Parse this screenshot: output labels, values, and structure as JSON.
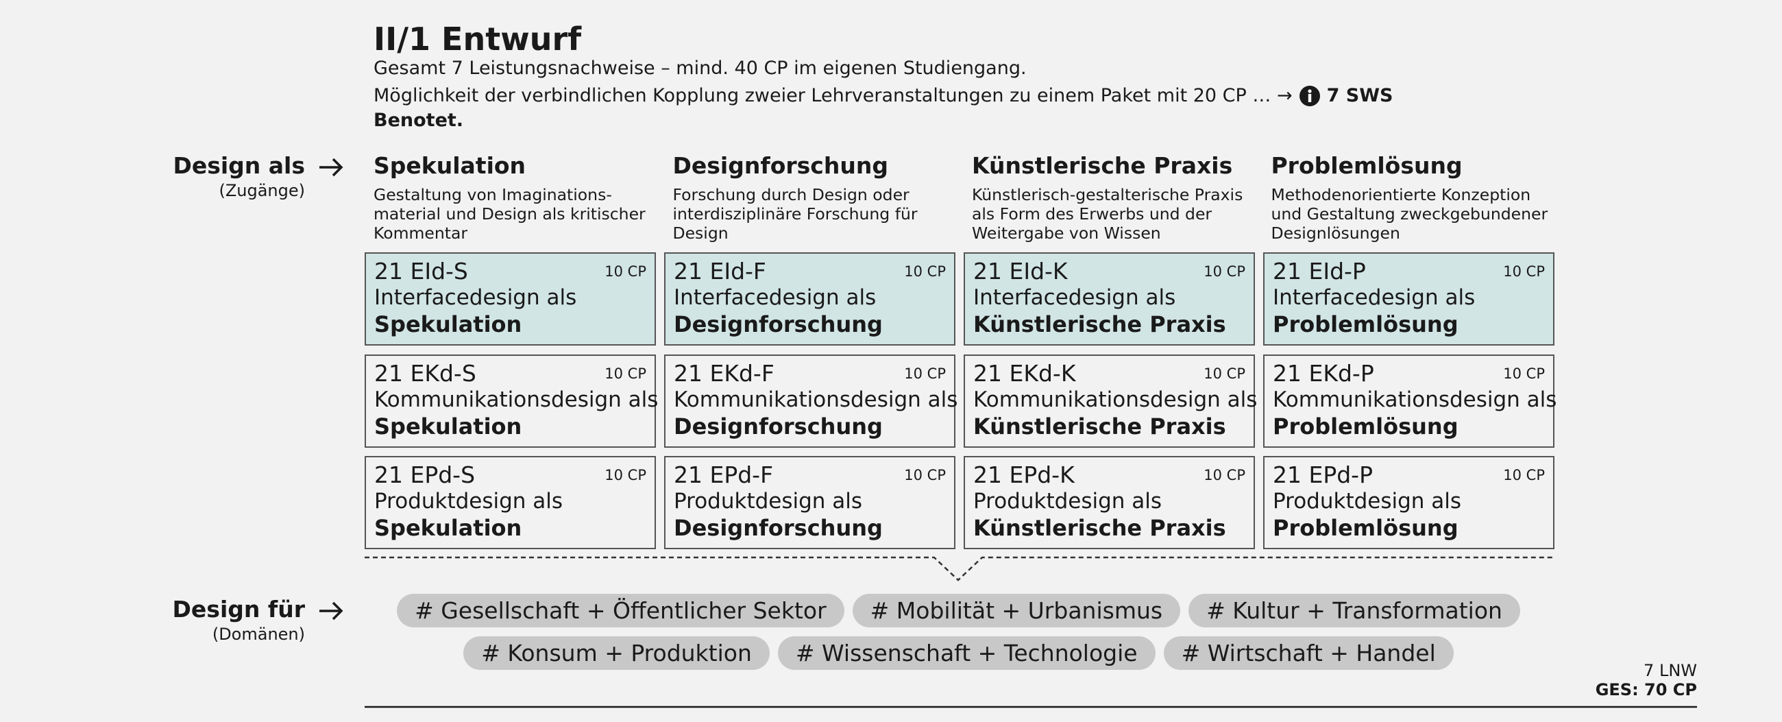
{
  "header": {
    "title": "II/1 Entwurf",
    "line1": "Gesamt 7 Leistungsnachweise – mind. 40 CP im eigenen Studiengang.",
    "line2": "Möglichkeit der verbindlichen Kopplung zweier Lehrveranstaltungen zu einem Paket mit 20 CP … →",
    "sws": "7 SWS",
    "graded": "Benotet."
  },
  "approaches": {
    "label": "Design als",
    "sublabel": "(Zugänge)"
  },
  "domains_label": {
    "label": "Design für",
    "sublabel": "(Domänen)"
  },
  "columns": [
    {
      "title": "Spekulation",
      "desc": "Gestaltung von Imaginations-\nmaterial und Design als kritischer\nKommentar"
    },
    {
      "title": "Designforschung",
      "desc": "Forschung durch Design oder\ninterdisziplinäre Forschung für\nDesign"
    },
    {
      "title": "Künstlerische Praxis",
      "desc": "Künstlerisch-gestalterische Praxis\nals Form des Erwerbs und der\nWeitergabe von Wissen"
    },
    {
      "title": "Problemlösung",
      "desc": "Methodenorientierte Konzeption\nund Gestaltung zweckgebundener\nDesignlösungen"
    }
  ],
  "modules": [
    [
      {
        "code": "21 EId-S",
        "cp": "10 CP",
        "name": "Interfacedesign als",
        "focus": "Spekulation"
      },
      {
        "code": "21 EId-F",
        "cp": "10 CP",
        "name": "Interfacedesign als",
        "focus": "Designforschung"
      },
      {
        "code": "21 EId-K",
        "cp": "10 CP",
        "name": "Interfacedesign als",
        "focus": "Künstlerische Praxis"
      },
      {
        "code": "21 EId-P",
        "cp": "10 CP",
        "name": "Interfacedesign als",
        "focus": "Problemlösung"
      }
    ],
    [
      {
        "code": "21 EKd-S",
        "cp": "10 CP",
        "name": "Kommunikationsdesign als",
        "focus": "Spekulation"
      },
      {
        "code": "21 EKd-F",
        "cp": "10 CP",
        "name": "Kommunikationsdesign als",
        "focus": "Designforschung"
      },
      {
        "code": "21 EKd-K",
        "cp": "10 CP",
        "name": "Kommunikationsdesign als",
        "focus": "Künstlerische Praxis"
      },
      {
        "code": "21 EKd-P",
        "cp": "10 CP",
        "name": "Kommunikationsdesign als",
        "focus": "Problemlösung"
      }
    ],
    [
      {
        "code": "21 EPd-S",
        "cp": "10 CP",
        "name": "Produktdesign als",
        "focus": "Spekulation"
      },
      {
        "code": "21 EPd-F",
        "cp": "10 CP",
        "name": "Produktdesign als",
        "focus": "Designforschung"
      },
      {
        "code": "21 EPd-K",
        "cp": "10 CP",
        "name": "Produktdesign als",
        "focus": "Künstlerische Praxis"
      },
      {
        "code": "21 EPd-P",
        "cp": "10 CP",
        "name": "Produktdesign als",
        "focus": "Problemlösung"
      }
    ]
  ],
  "domains": [
    [
      "# Gesellschaft + Öffentlicher Sektor",
      "# Mobilität + Urbanismus",
      "# Kultur + Transformation"
    ],
    [
      "# Konsum + Produktion",
      "# Wissenschaft + Technologie",
      "# Wirtschaft + Handel"
    ]
  ],
  "footer": {
    "count": "7 LNW",
    "total": "GES: 70 CP"
  }
}
